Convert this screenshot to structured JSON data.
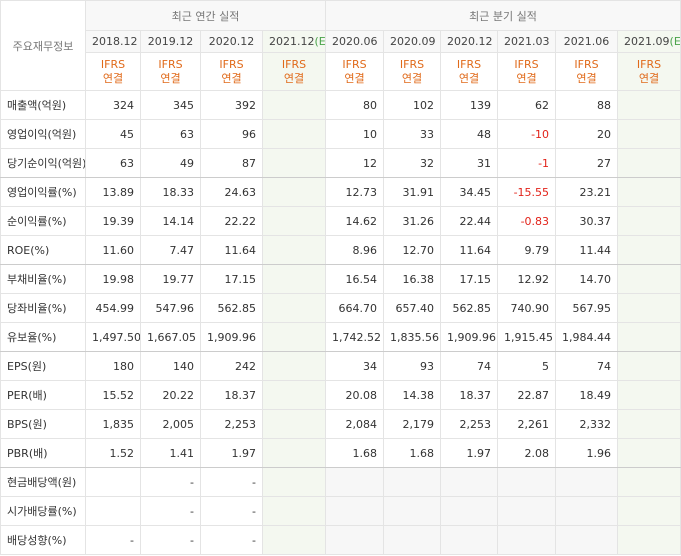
{
  "table": {
    "title": "주요재무정보",
    "groups": [
      {
        "label": "최근 연간 실적",
        "span": 4
      },
      {
        "label": "최근 분기 실적",
        "span": 6
      }
    ],
    "columns": [
      {
        "period": "2018.12",
        "standard": "IFRS",
        "basis": "연결"
      },
      {
        "period": "2019.12",
        "standard": "IFRS",
        "basis": "연결"
      },
      {
        "period": "2020.12",
        "standard": "IFRS",
        "basis": "연결"
      },
      {
        "period": "2021.12",
        "estimate": "(E)",
        "standard": "IFRS",
        "basis": "연결"
      },
      {
        "period": "2020.06",
        "standard": "IFRS",
        "basis": "연결"
      },
      {
        "period": "2020.09",
        "standard": "IFRS",
        "basis": "연결"
      },
      {
        "period": "2020.12",
        "standard": "IFRS",
        "basis": "연결"
      },
      {
        "period": "2021.03",
        "standard": "IFRS",
        "basis": "연결"
      },
      {
        "period": "2021.06",
        "standard": "IFRS",
        "basis": "연결"
      },
      {
        "period": "2021.09",
        "estimate": "(E)",
        "standard": "IFRS",
        "basis": "연결"
      }
    ],
    "rows": [
      {
        "label": "매출액(억원)",
        "cells": [
          "324",
          "345",
          "392",
          null,
          "80",
          "102",
          "139",
          "62",
          "88",
          null
        ]
      },
      {
        "label": "영업이익(억원)",
        "cells": [
          "45",
          "63",
          "96",
          null,
          "10",
          "33",
          "48",
          "-10",
          "20",
          null
        ]
      },
      {
        "label": "당기순이익(억원)",
        "cells": [
          "63",
          "49",
          "87",
          null,
          "12",
          "32",
          "31",
          "-1",
          "27",
          null
        ]
      },
      {
        "label": "영업이익률(%)",
        "cells": [
          "13.89",
          "18.33",
          "24.63",
          null,
          "12.73",
          "31.91",
          "34.45",
          "-15.55",
          "23.21",
          null
        ]
      },
      {
        "label": "순이익률(%)",
        "cells": [
          "19.39",
          "14.14",
          "22.22",
          null,
          "14.62",
          "31.26",
          "22.44",
          "-0.83",
          "30.37",
          null
        ]
      },
      {
        "label": "ROE(%)",
        "cells": [
          "11.60",
          "7.47",
          "11.64",
          null,
          "8.96",
          "12.70",
          "11.64",
          "9.79",
          "11.44",
          null
        ]
      },
      {
        "label": "부채비율(%)",
        "cells": [
          "19.98",
          "19.77",
          "17.15",
          null,
          "16.54",
          "16.38",
          "17.15",
          "12.92",
          "14.70",
          null
        ]
      },
      {
        "label": "당좌비율(%)",
        "cells": [
          "454.99",
          "547.96",
          "562.85",
          null,
          "664.70",
          "657.40",
          "562.85",
          "740.90",
          "567.95",
          null
        ]
      },
      {
        "label": "유보율(%)",
        "cells": [
          "1,497.50",
          "1,667.05",
          "1,909.96",
          null,
          "1,742.52",
          "1,835.56",
          "1,909.96",
          "1,915.45",
          "1,984.44",
          null
        ]
      },
      {
        "label": "EPS(원)",
        "cells": [
          "180",
          "140",
          "242",
          null,
          "34",
          "93",
          "74",
          "5",
          "74",
          null
        ]
      },
      {
        "label": "PER(배)",
        "cells": [
          "15.52",
          "20.22",
          "18.37",
          null,
          "20.08",
          "14.38",
          "18.37",
          "22.87",
          "18.49",
          null
        ]
      },
      {
        "label": "BPS(원)",
        "cells": [
          "1,835",
          "2,005",
          "2,253",
          null,
          "2,084",
          "2,179",
          "2,253",
          "2,261",
          "2,332",
          null
        ]
      },
      {
        "label": "PBR(배)",
        "cells": [
          "1.52",
          "1.41",
          "1.97",
          null,
          "1.68",
          "1.68",
          "1.97",
          "2.08",
          "1.96",
          null
        ]
      },
      {
        "label": "현금배당액(원)",
        "cells": [
          null,
          "-",
          "-",
          null,
          null,
          null,
          null,
          null,
          null,
          null
        ]
      },
      {
        "label": "시가배당률(%)",
        "cells": [
          null,
          "-",
          "-",
          null,
          null,
          null,
          null,
          null,
          null,
          null
        ]
      },
      {
        "label": "배당성향(%)",
        "cells": [
          "-",
          "-",
          "-",
          null,
          null,
          null,
          null,
          null,
          null,
          null
        ]
      }
    ]
  }
}
